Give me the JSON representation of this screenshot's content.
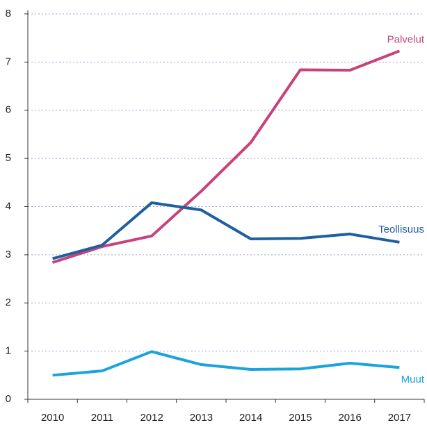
{
  "chart_data": {
    "type": "line",
    "categories": [
      "2010",
      "2011",
      "2012",
      "2013",
      "2014",
      "2015",
      "2016",
      "2017"
    ],
    "series": [
      {
        "name": "Palvelut",
        "color": "#c8427a",
        "values": [
          2.84,
          3.17,
          3.39,
          4.32,
          5.33,
          6.84,
          6.83,
          7.23
        ]
      },
      {
        "name": "Teollisuus",
        "color": "#1f5fa0",
        "values": [
          2.92,
          3.2,
          4.08,
          3.93,
          3.33,
          3.34,
          3.43,
          3.26
        ]
      },
      {
        "name": "Muut",
        "color": "#1ba3dc",
        "values": [
          0.5,
          0.59,
          0.99,
          0.72,
          0.62,
          0.63,
          0.75,
          0.66
        ]
      }
    ],
    "ylim": [
      0,
      8
    ],
    "yticks": [
      0,
      1,
      2,
      3,
      4,
      5,
      6,
      7,
      8
    ],
    "grid": true
  }
}
